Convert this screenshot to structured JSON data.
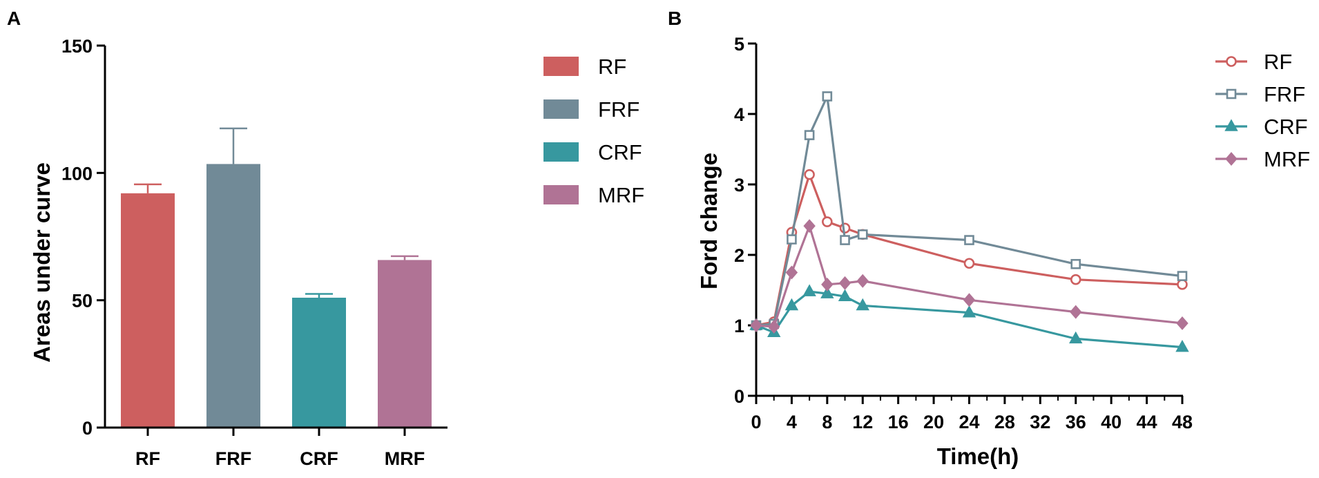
{
  "colors": {
    "RF": "#CD5F5F",
    "FRF": "#718A97",
    "CRF": "#37989F",
    "MRF": "#B07395",
    "axis": "#000000"
  },
  "chart_data": [
    {
      "panel": "A",
      "type": "bar",
      "title": "",
      "xlabel": "",
      "ylabel": "Areas under curve",
      "categories": [
        "RF",
        "FRF",
        "CRF",
        "MRF"
      ],
      "values": [
        92,
        103.5,
        51,
        65.8
      ],
      "errors": [
        3.5,
        14,
        1.5,
        1.5
      ],
      "ylim": [
        0,
        150
      ],
      "yticks": [
        0,
        50,
        100,
        150
      ],
      "legend": [
        "RF",
        "FRF",
        "CRF",
        "MRF"
      ],
      "legend_position": "right",
      "grid": false
    },
    {
      "panel": "B",
      "type": "line",
      "title": "",
      "xlabel": "Time(h)",
      "ylabel": "Ford change",
      "xlim": [
        0,
        48
      ],
      "ylim": [
        0,
        5
      ],
      "xticks": [
        0,
        4,
        8,
        12,
        16,
        20,
        24,
        28,
        32,
        36,
        40,
        44,
        48
      ],
      "yticks": [
        0,
        1,
        2,
        3,
        4,
        5
      ],
      "x": [
        0,
        2,
        4,
        6,
        8,
        10,
        12,
        24,
        36,
        48
      ],
      "legend_position": "top-right",
      "grid": false,
      "series": [
        {
          "name": "RF",
          "marker": "circle",
          "values": [
            1.0,
            1.05,
            2.32,
            3.14,
            2.47,
            2.38,
            2.29,
            1.88,
            1.65,
            1.58
          ]
        },
        {
          "name": "FRF",
          "marker": "square",
          "values": [
            1.0,
            1.02,
            2.22,
            3.7,
            4.25,
            2.21,
            2.29,
            2.21,
            1.87,
            1.7
          ]
        },
        {
          "name": "CRF",
          "marker": "triangle",
          "values": [
            1.0,
            0.9,
            1.28,
            1.48,
            1.45,
            1.41,
            1.28,
            1.18,
            0.81,
            0.69
          ]
        },
        {
          "name": "MRF",
          "marker": "diamond",
          "values": [
            1.0,
            0.98,
            1.75,
            2.41,
            1.58,
            1.6,
            1.63,
            1.36,
            1.19,
            1.03
          ]
        }
      ]
    }
  ]
}
